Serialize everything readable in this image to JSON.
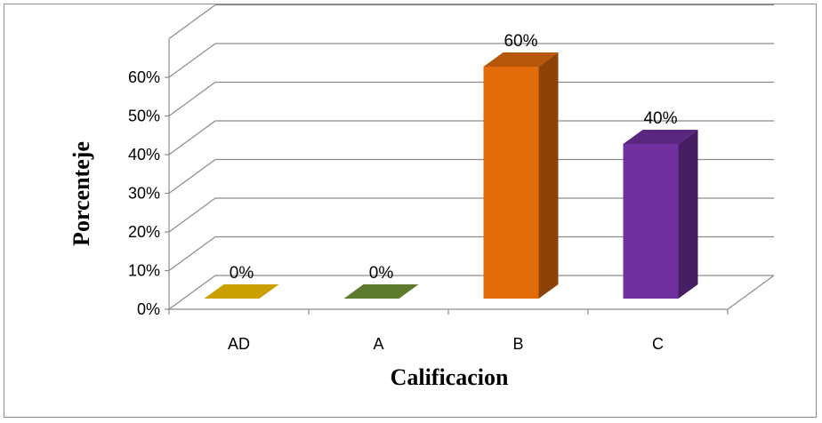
{
  "chart_data": {
    "type": "bar",
    "title": "",
    "xlabel": "Calificacion",
    "ylabel": "Porcenteje",
    "categories": [
      "AD",
      "A",
      "B",
      "C"
    ],
    "values": [
      0,
      0,
      60,
      40
    ],
    "value_labels": [
      "0%",
      "0%",
      "60%",
      "40%"
    ],
    "yticks": [
      "0%",
      "10%",
      "20%",
      "30%",
      "40%",
      "50%",
      "60%"
    ],
    "ylim": [
      0,
      70
    ],
    "grid": true,
    "three_d": true,
    "colors": [
      "#c9a000",
      "#5e7a2e",
      "#e36c0a",
      "#7030a0"
    ],
    "legend": "none"
  }
}
